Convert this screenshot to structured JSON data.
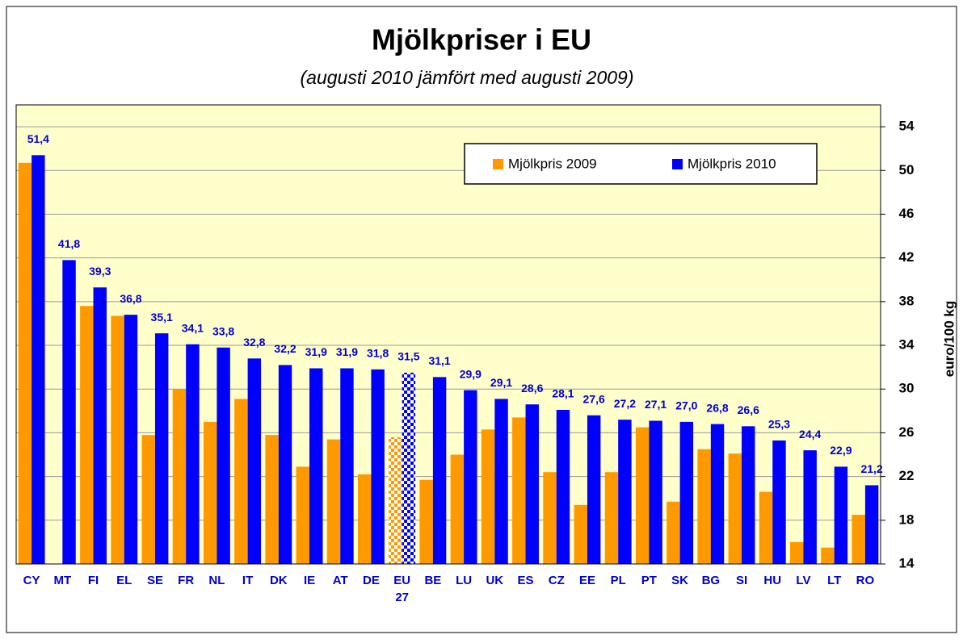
{
  "chart_data": {
    "type": "bar",
    "title": "Mjölkpriser i EU",
    "subtitle": "(augusti 2010 jämfört med augusti 2009)",
    "y_label": "euro/100 kg",
    "categories": [
      "CY",
      "MT",
      "FI",
      "EL",
      "SE",
      "FR",
      "NL",
      "IT",
      "DK",
      "IE",
      "AT",
      "DE",
      "EU 27",
      "BE",
      "LU",
      "UK",
      "ES",
      "CZ",
      "EE",
      "PL",
      "PT",
      "SK",
      "BG",
      "SI",
      "HU",
      "LV",
      "LT",
      "RO"
    ],
    "series": [
      {
        "name": "Mjölkpris 2009",
        "color": "#ff9900",
        "values": [
          50.7,
          null,
          37.6,
          36.7,
          25.8,
          30.0,
          27.0,
          29.1,
          25.8,
          22.9,
          25.4,
          22.2,
          25.6,
          21.7,
          24.0,
          26.3,
          27.4,
          22.4,
          19.4,
          22.4,
          26.5,
          19.7,
          24.5,
          24.1,
          20.6,
          16.0,
          15.5,
          18.5
        ]
      },
      {
        "name": "Mjölkpris 2010",
        "color": "#0000ff",
        "values": [
          51.4,
          41.8,
          39.3,
          36.8,
          35.1,
          34.1,
          33.8,
          32.8,
          32.2,
          31.9,
          31.9,
          31.8,
          31.5,
          31.1,
          29.9,
          29.1,
          28.6,
          28.1,
          27.6,
          27.2,
          27.1,
          27.0,
          26.8,
          26.6,
          25.3,
          24.4,
          22.9,
          21.2
        ],
        "value_labels": [
          "51,4",
          "41,8",
          "39,3",
          "36,8",
          "35,1",
          "34,1",
          "33,8",
          "32,8",
          "32,2",
          "31,9",
          "31,9",
          "31,8",
          "31,5",
          "31,1",
          "29,9",
          "29,1",
          "28,6",
          "28,1",
          "27,6",
          "27,2",
          "27,1",
          "27,0",
          "26,8",
          "26,6",
          "25,3",
          "24,4",
          "22,9",
          "21,2"
        ]
      }
    ],
    "highlight_index": 12,
    "ylim": [
      14,
      56
    ],
    "yticks": [
      14,
      18,
      22,
      26,
      30,
      34,
      38,
      42,
      46,
      50,
      54
    ],
    "y_axis_side": "right",
    "grid": true,
    "legend": "top-right",
    "plot_background": "#ffffcc"
  }
}
